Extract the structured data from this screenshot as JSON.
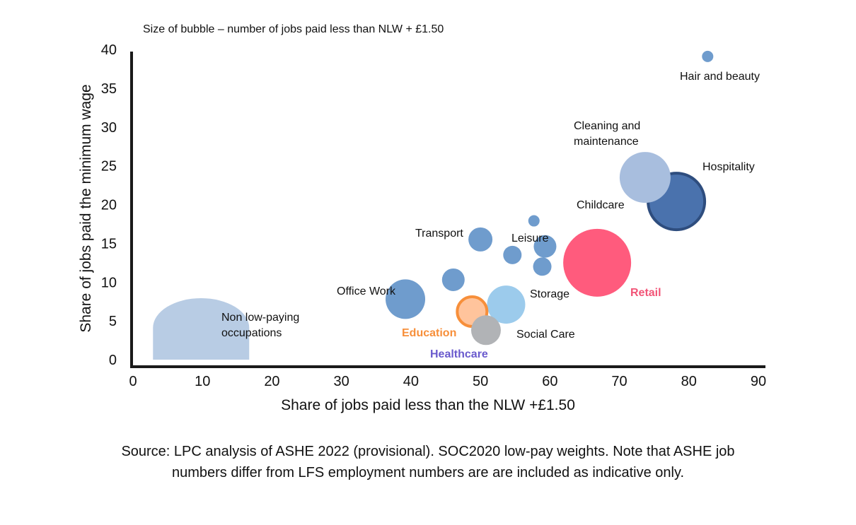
{
  "chart_data": {
    "type": "scatter",
    "subtitle": "Size of bubble – number of jobs paid less than NLW + £1.50",
    "xlabel": "Share of jobs paid less than the NLW +£1.50",
    "ylabel": "Share of jobs paid the minimum wage",
    "xlim": [
      0,
      90
    ],
    "ylim": [
      0,
      40
    ],
    "x_ticks": [
      "0",
      "10",
      "20",
      "30",
      "40",
      "50",
      "60",
      "70",
      "80",
      "90"
    ],
    "y_ticks": [
      "0",
      "5",
      "10",
      "15",
      "20",
      "25",
      "30",
      "35",
      "40"
    ],
    "grid": false,
    "background_segment": {
      "label": "Non low-paying occupations",
      "label_lines": [
        "Non low-paying",
        "occupations"
      ],
      "color": "#b8cce4",
      "x": 9.8,
      "y": 0
    },
    "points": [
      {
        "label": "Hair and beauty",
        "label_lines": [
          "Hair and beauty"
        ],
        "x": 82.7,
        "y": 39.1,
        "r": 8,
        "color": "#6f9ccd"
      },
      {
        "label": "Cleaning and maintenance",
        "label_lines": [
          "Cleaning and",
          "maintenance"
        ],
        "x": 73.7,
        "y": 23.5,
        "r": 36,
        "color": "#a8bede"
      },
      {
        "label": "Hospitality",
        "label_lines": [
          "Hospitality"
        ],
        "x": 78.2,
        "y": 20.4,
        "r": 40,
        "color": "#4a72ad",
        "stroke": "#2e4d7e"
      },
      {
        "label": "Childcare",
        "label_lines": [
          "Childcare"
        ],
        "x": 57.7,
        "y": 17.9,
        "r": 8,
        "color": "#6f9ccd"
      },
      {
        "label": "Retail",
        "label_lines": [
          "Retail"
        ],
        "x": 66.8,
        "y": 12.5,
        "r": 48,
        "color": "#ff5b7d",
        "label_color": "#f25477",
        "bold": true
      },
      {
        "label": "Transport",
        "label_lines": [
          "Transport"
        ],
        "x": 50.0,
        "y": 15.5,
        "r": 17,
        "color": "#6f9ccd"
      },
      {
        "label": "Leisure",
        "label_lines": [
          "Leisure"
        ],
        "x": 59.3,
        "y": 14.6,
        "r": 16,
        "color": "#6f9ccd"
      },
      {
        "label": "",
        "label_lines": [],
        "x": 54.6,
        "y": 13.5,
        "r": 13,
        "color": "#6f9ccd"
      },
      {
        "label": "",
        "label_lines": [],
        "x": 58.9,
        "y": 12.0,
        "r": 13,
        "color": "#6f9ccd"
      },
      {
        "label": "",
        "label_lines": [],
        "x": 46.1,
        "y": 10.3,
        "r": 16,
        "color": "#6f9ccd"
      },
      {
        "label": "Office Work",
        "label_lines": [
          "Office Work"
        ],
        "x": 39.2,
        "y": 7.8,
        "r": 28,
        "color": "#6f9ccd"
      },
      {
        "label": "Storage",
        "label_lines": [
          "Storage"
        ],
        "x": 53.7,
        "y": 7.1,
        "r": 27,
        "color": "#9ccbec"
      },
      {
        "label": "Education",
        "label_lines": [
          "Education"
        ],
        "x": 48.8,
        "y": 6.2,
        "r": 21,
        "color": "#ffc49c",
        "stroke": "#f78f3a",
        "label_color": "#f78f3a",
        "bold": true
      },
      {
        "label": "Social Care",
        "label_lines": [
          "Social Care"
        ],
        "x": 50.8,
        "y": 3.8,
        "r": 21,
        "color": "#b1b3b6"
      },
      {
        "label": "Healthcare",
        "label_lines": [
          "Healthcare"
        ],
        "x": 49.0,
        "y": 1.9,
        "r": 0,
        "color": "#6a5acd",
        "label_color": "#6a5acd",
        "bold": true,
        "label_only": true
      }
    ]
  },
  "source_lines": [
    "Source: LPC analysis of ASHE 2022 (provisional). SOC2020 low-pay weights. Note that ASHE job",
    "numbers differ from LFS employment numbers are are included as indicative only."
  ]
}
